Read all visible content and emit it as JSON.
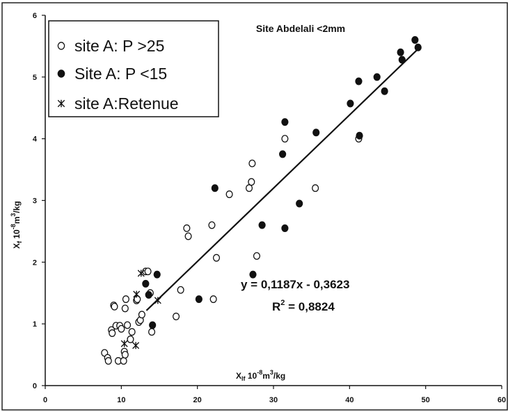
{
  "chart_data": {
    "type": "scatter",
    "title": "Site Abdelali <2mm",
    "xlabel": {
      "base": "X",
      "sub": "lf",
      "text": " 10",
      "exp": "-8",
      "unit": "m",
      "unit_exp": "3",
      "tail": "/kg"
    },
    "ylabel": {
      "base": "X",
      "sub": "f",
      "text": " 10",
      "exp": "-8",
      "unit": "m",
      "unit_exp": "3",
      "tail": "/kg"
    },
    "xlim": [
      0,
      60
    ],
    "ylim": [
      0,
      6
    ],
    "xticks": [
      "0",
      "10",
      "20",
      "30",
      "40",
      "50",
      "60"
    ],
    "yticks": [
      "0",
      "1",
      "2",
      "3",
      "4",
      "5",
      "6"
    ],
    "grid": false,
    "legend_position": "top-left",
    "series": [
      {
        "name": "site A: P >25",
        "marker": "open-circle",
        "points": [
          [
            7.8,
            0.53
          ],
          [
            8.2,
            0.45
          ],
          [
            8.3,
            0.4
          ],
          [
            8.7,
            0.9
          ],
          [
            8.8,
            0.85
          ],
          [
            9.0,
            1.3
          ],
          [
            9.1,
            1.28
          ],
          [
            9.3,
            0.97
          ],
          [
            9.6,
            0.4
          ],
          [
            9.8,
            0.97
          ],
          [
            10.0,
            0.92
          ],
          [
            10.3,
            0.4
          ],
          [
            10.4,
            0.55
          ],
          [
            10.5,
            0.5
          ],
          [
            10.5,
            1.25
          ],
          [
            10.6,
            1.4
          ],
          [
            10.8,
            0.98
          ],
          [
            11.2,
            0.75
          ],
          [
            11.4,
            0.87
          ],
          [
            12.0,
            1.38
          ],
          [
            12.1,
            1.4
          ],
          [
            12.3,
            1.03
          ],
          [
            12.5,
            1.06
          ],
          [
            12.7,
            1.15
          ],
          [
            13.2,
            1.85
          ],
          [
            13.5,
            1.85
          ],
          [
            13.8,
            1.5
          ],
          [
            14.0,
            0.87
          ],
          [
            17.2,
            1.12
          ],
          [
            17.8,
            1.55
          ],
          [
            18.6,
            2.55
          ],
          [
            18.8,
            2.42
          ],
          [
            21.9,
            2.6
          ],
          [
            22.1,
            1.4
          ],
          [
            22.5,
            2.07
          ],
          [
            24.2,
            3.1
          ],
          [
            26.8,
            3.2
          ],
          [
            27.1,
            3.3
          ],
          [
            27.2,
            3.6
          ],
          [
            27.8,
            2.1
          ],
          [
            31.5,
            4.0
          ],
          [
            35.5,
            3.2
          ],
          [
            41.2,
            4.0
          ]
        ]
      },
      {
        "name": "Site A: P <15",
        "marker": "filled-circle",
        "points": [
          [
            13.2,
            1.65
          ],
          [
            13.6,
            1.47
          ],
          [
            14.1,
            0.98
          ],
          [
            14.7,
            1.8
          ],
          [
            20.2,
            1.4
          ],
          [
            22.3,
            3.2
          ],
          [
            27.3,
            1.8
          ],
          [
            28.5,
            2.6
          ],
          [
            31.2,
            3.75
          ],
          [
            31.5,
            4.27
          ],
          [
            31.5,
            2.55
          ],
          [
            33.4,
            2.95
          ],
          [
            35.6,
            4.1
          ],
          [
            40.1,
            4.57
          ],
          [
            41.2,
            4.93
          ],
          [
            41.3,
            4.05
          ],
          [
            43.6,
            5.0
          ],
          [
            44.6,
            4.77
          ],
          [
            46.7,
            5.4
          ],
          [
            46.9,
            5.28
          ],
          [
            48.6,
            5.6
          ],
          [
            49.0,
            5.48
          ]
        ]
      },
      {
        "name": "site A:Retenue",
        "marker": "star",
        "points": [
          [
            10.4,
            0.68
          ],
          [
            11.9,
            0.65
          ],
          [
            12.0,
            1.48
          ],
          [
            12.6,
            1.82
          ],
          [
            14.8,
            1.38
          ]
        ]
      }
    ],
    "trendline": {
      "slope": 0.1187,
      "intercept": -0.3623,
      "x_range": [
        13.3,
        49.1
      ]
    },
    "annotations": [
      {
        "id": "equation",
        "text": "y = 0,1187x - 0,3623"
      },
      {
        "id": "r2",
        "base": "R",
        "exp": "2",
        "text": " = 0,8824"
      }
    ]
  }
}
